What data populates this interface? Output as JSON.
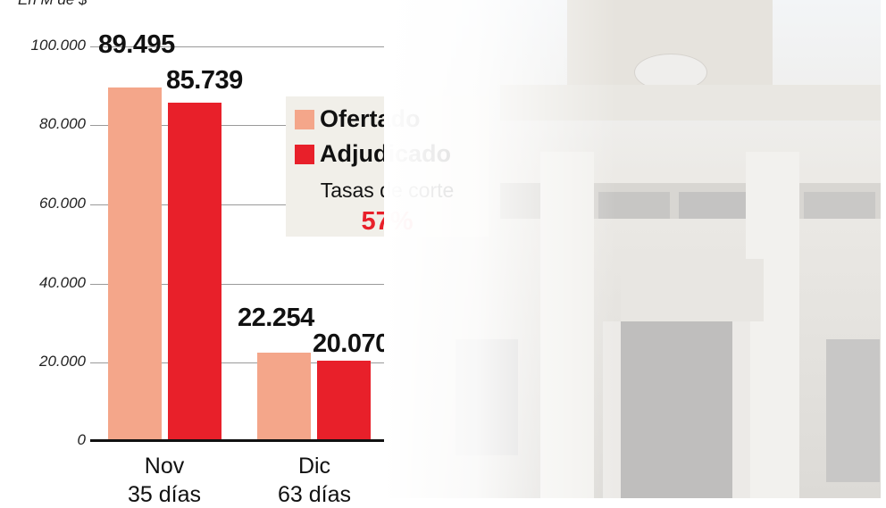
{
  "chart_data": {
    "type": "bar",
    "title": "",
    "unit_label": "En M de $",
    "xlabel": "",
    "ylabel": "En M de $",
    "ylim": [
      0,
      100000
    ],
    "yticks": [
      "100.000",
      "80.000",
      "60.000",
      "40.000",
      "20.000",
      "0"
    ],
    "categories": [
      "Nov",
      "Dic"
    ],
    "category_sublabels": [
      "35 días",
      "63 días"
    ],
    "series": [
      {
        "name": "Ofertado",
        "color": "#f4a68a",
        "values": [
          89495,
          22254
        ],
        "labels": [
          "89.495",
          "22.254"
        ]
      },
      {
        "name": "Adjudicado",
        "color": "#e8202a",
        "values": [
          85739,
          20070
        ],
        "labels": [
          "85.739",
          "20.070"
        ]
      }
    ],
    "legend_position": "upper right (inside box)",
    "annotation": {
      "label": "Tasas de corte",
      "value": "57%"
    },
    "grid": true
  },
  "legend": {
    "items": [
      {
        "label": "Ofertado",
        "color": "#f4a68a"
      },
      {
        "label": "Adjudicado",
        "color": "#e8202a"
      }
    ],
    "rate_label": "Tasas de corte",
    "rate_value": "57%"
  },
  "colors": {
    "ofertado": "#f4a68a",
    "adjudicado": "#e8202a",
    "legend_bg": "#f1efe9"
  }
}
